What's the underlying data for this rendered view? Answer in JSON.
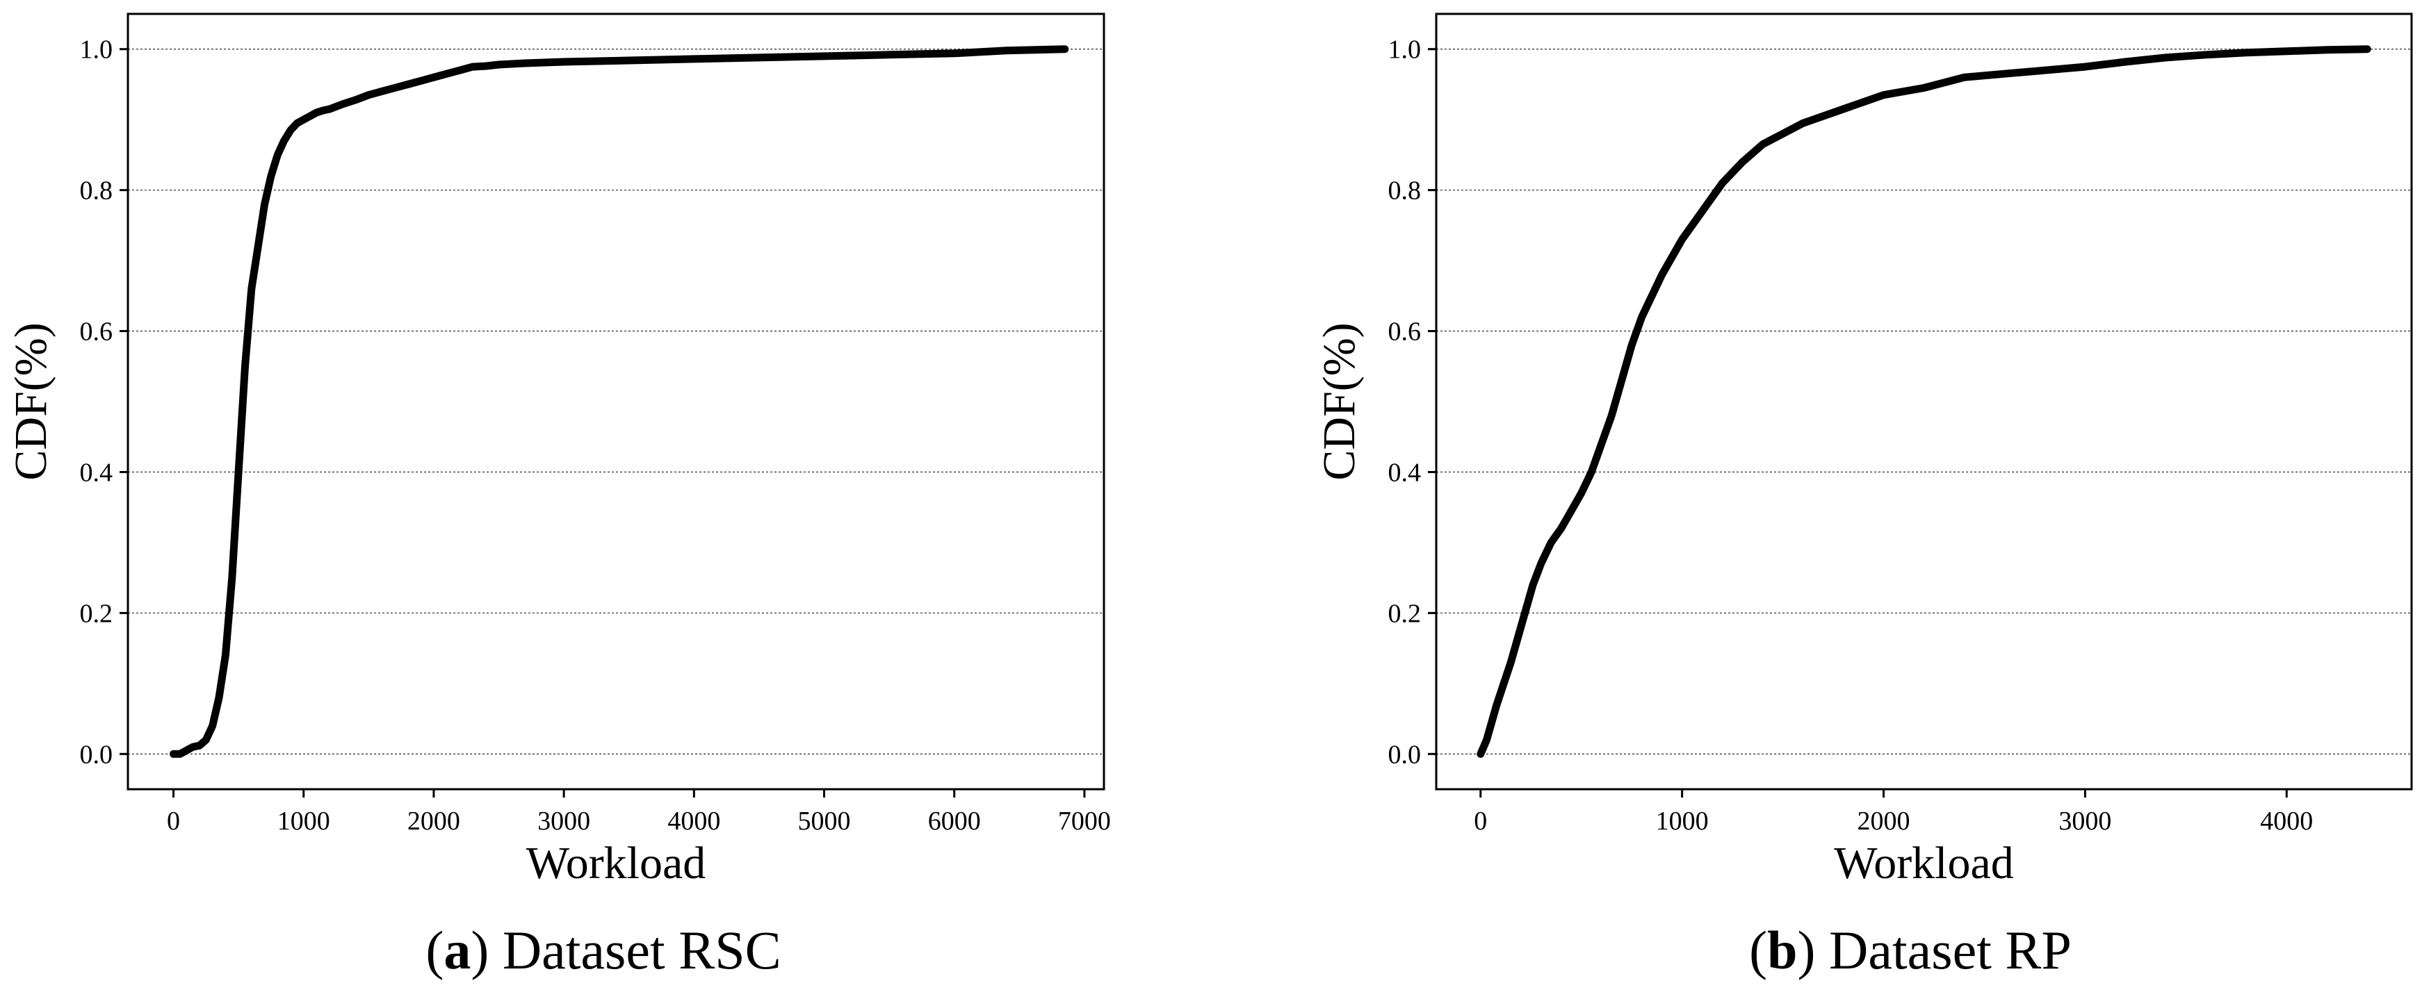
{
  "chart_data": [
    {
      "type": "line",
      "caption_letter": "a",
      "caption_text": " Dataset RSC",
      "xlabel": "Workload",
      "ylabel": "CDF(%)",
      "xlim": [
        -350,
        7150
      ],
      "ylim": [
        -0.05,
        1.05
      ],
      "xticks": [
        0,
        1000,
        2000,
        3000,
        4000,
        5000,
        6000,
        7000
      ],
      "yticks": [
        0.0,
        0.2,
        0.4,
        0.6,
        0.8,
        1.0
      ],
      "ytick_labels": [
        "0.0",
        "0.2",
        "0.4",
        "0.6",
        "0.8",
        "1.0"
      ],
      "grid": "horizontal dashed",
      "series": [
        {
          "color": "#000000",
          "x": [
            0,
            50,
            100,
            150,
            200,
            250,
            300,
            350,
            400,
            450,
            500,
            550,
            600,
            650,
            700,
            750,
            800,
            850,
            900,
            950,
            1000,
            1050,
            1100,
            1150,
            1200,
            1300,
            1400,
            1500,
            1600,
            1700,
            1800,
            1900,
            2000,
            2100,
            2200,
            2300,
            2400,
            2500,
            2700,
            3000,
            3500,
            4000,
            4500,
            5000,
            5500,
            6000,
            6400,
            6850
          ],
          "y": [
            0.0,
            0.0,
            0.005,
            0.01,
            0.012,
            0.02,
            0.04,
            0.08,
            0.14,
            0.25,
            0.4,
            0.55,
            0.66,
            0.72,
            0.78,
            0.82,
            0.85,
            0.87,
            0.885,
            0.895,
            0.9,
            0.905,
            0.91,
            0.913,
            0.915,
            0.922,
            0.928,
            0.935,
            0.94,
            0.945,
            0.95,
            0.955,
            0.96,
            0.965,
            0.97,
            0.975,
            0.976,
            0.978,
            0.98,
            0.982,
            0.984,
            0.986,
            0.988,
            0.99,
            0.992,
            0.994,
            0.998,
            1.0
          ]
        }
      ]
    },
    {
      "type": "line",
      "caption_letter": "b",
      "caption_text": " Dataset RP",
      "xlabel": "Workload",
      "ylabel": "CDF(%)",
      "xlim": [
        -220,
        4620
      ],
      "ylim": [
        -0.05,
        1.05
      ],
      "xticks": [
        0,
        1000,
        2000,
        3000,
        4000
      ],
      "yticks": [
        0.0,
        0.2,
        0.4,
        0.6,
        0.8,
        1.0
      ],
      "ytick_labels": [
        "0.0",
        "0.2",
        "0.4",
        "0.6",
        "0.8",
        "1.0"
      ],
      "grid": "horizontal dashed",
      "series": [
        {
          "color": "#000000",
          "x": [
            0,
            30,
            80,
            150,
            200,
            260,
            300,
            350,
            400,
            450,
            500,
            550,
            600,
            650,
            700,
            750,
            800,
            900,
            1000,
            1100,
            1200,
            1300,
            1400,
            1500,
            1600,
            1800,
            2000,
            2200,
            2400,
            2600,
            2800,
            3000,
            3200,
            3400,
            3600,
            3800,
            4000,
            4200,
            4400
          ],
          "y": [
            0.0,
            0.02,
            0.07,
            0.13,
            0.18,
            0.24,
            0.27,
            0.3,
            0.32,
            0.345,
            0.37,
            0.4,
            0.44,
            0.48,
            0.53,
            0.58,
            0.62,
            0.68,
            0.73,
            0.77,
            0.81,
            0.84,
            0.865,
            0.88,
            0.895,
            0.915,
            0.935,
            0.945,
            0.96,
            0.965,
            0.97,
            0.975,
            0.982,
            0.988,
            0.992,
            0.995,
            0.997,
            0.999,
            1.0
          ]
        }
      ]
    }
  ]
}
